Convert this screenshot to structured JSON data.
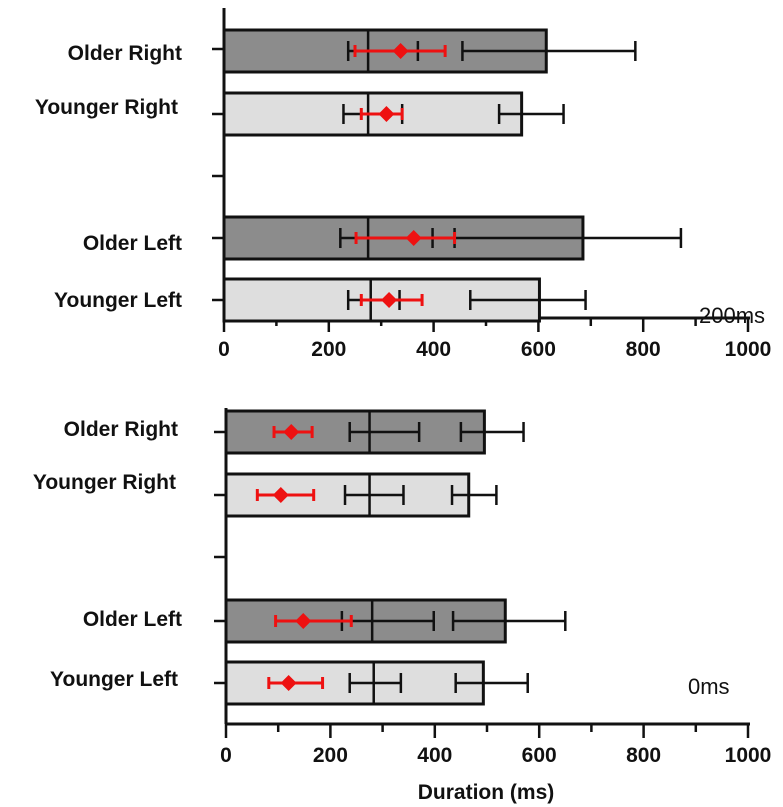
{
  "chart_data": [
    {
      "type": "bar",
      "orientation": "horizontal",
      "panel_label": "200ms",
      "xlabel": "",
      "xlim": [
        0,
        1000
      ],
      "xticks": [
        0,
        200,
        400,
        600,
        800,
        1000
      ],
      "xtick_labels": [
        "0",
        "200",
        "400",
        "600",
        "800",
        "1000"
      ],
      "categories": [
        "Older Right",
        "Younger Right",
        "Older Left",
        "Younger Left"
      ],
      "bar_values": [
        615,
        568,
        685,
        602
      ],
      "bar_error": [
        [
          455,
          785
        ],
        [
          525,
          648
        ],
        [
          440,
          872
        ],
        [
          470,
          690
        ]
      ],
      "bar_fill": [
        "#8c8c8c",
        "#dedede",
        "#8c8c8c",
        "#dedede"
      ],
      "median_line": [
        275,
        275,
        275,
        280
      ],
      "inner_range": [
        [
          237,
          370
        ],
        [
          228,
          340
        ],
        [
          222,
          398
        ],
        [
          237,
          335
        ]
      ],
      "red_marker": [
        337,
        310,
        362,
        315
      ],
      "red_error": [
        [
          250,
          422
        ],
        [
          262,
          340
        ],
        [
          252,
          440
        ],
        [
          262,
          378
        ]
      ],
      "grid": false
    },
    {
      "type": "bar",
      "orientation": "horizontal",
      "panel_label": "0ms",
      "xlabel": "Duration (ms)",
      "xlim": [
        0,
        1000
      ],
      "xticks": [
        0,
        200,
        400,
        600,
        800,
        1000
      ],
      "xtick_labels": [
        "0",
        "200",
        "400",
        "600",
        "800",
        "1000"
      ],
      "categories": [
        "Older Right",
        "Younger Right",
        "Older Left",
        "Younger Left"
      ],
      "bar_values": [
        495,
        465,
        535,
        493
      ],
      "bar_error": [
        [
          450,
          570
        ],
        [
          433,
          518
        ],
        [
          435,
          650
        ],
        [
          440,
          578
        ]
      ],
      "bar_fill": [
        "#8c8c8c",
        "#dedede",
        "#8c8c8c",
        "#dedede"
      ],
      "median_line": [
        275,
        275,
        280,
        283
      ],
      "inner_range": [
        [
          237,
          370
        ],
        [
          228,
          340
        ],
        [
          222,
          398
        ],
        [
          237,
          335
        ]
      ],
      "red_marker": [
        125,
        105,
        148,
        120
      ],
      "red_error": [
        [
          92,
          165
        ],
        [
          60,
          168
        ],
        [
          95,
          240
        ],
        [
          82,
          185
        ]
      ],
      "grid": false
    }
  ],
  "colors": {
    "dark_bar": "#8c8c8c",
    "light_bar": "#dedede",
    "marker": "#ee1111",
    "ink": "#111111"
  }
}
